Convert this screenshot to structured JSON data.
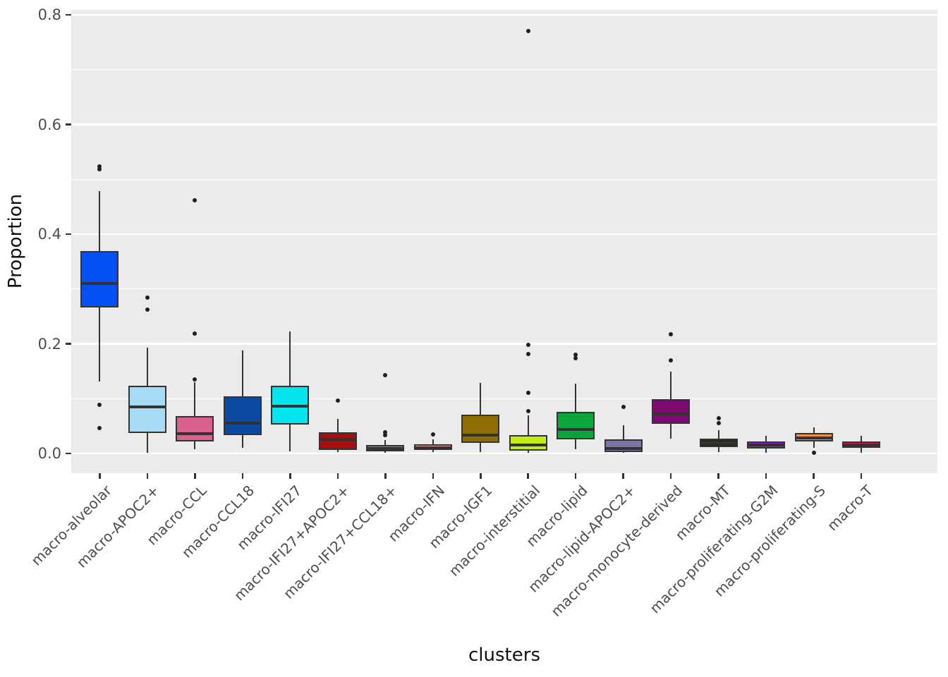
{
  "figure": {
    "panel_bg": "#EBEBEB",
    "grid_color": "#FFFFFF",
    "box_edge_color": "#333333",
    "outlier_color": "#1F1F1F",
    "tick_color": "#333333",
    "tick_label_color": "#4D4D4D",
    "axis_title_color": "#111111"
  },
  "chart_data": {
    "type": "boxplot",
    "title": "",
    "xlabel": "clusters",
    "ylabel": "Proportion",
    "ylim": [
      -0.036,
      0.809
    ],
    "yticks": [
      0.0,
      0.2,
      0.4,
      0.6,
      0.8
    ],
    "ytick_labels": [
      "0.0",
      "0.2",
      "0.4",
      "0.6",
      "0.8"
    ],
    "yminor": [
      0.1,
      0.3,
      0.5,
      0.7
    ],
    "grid": true,
    "legend": "none",
    "categories": [
      "macro-alveolar",
      "macro-APOC2+",
      "macro-CCL",
      "macro-CCL18",
      "macro-IFI27",
      "macro-IFI27+APOC2+",
      "macro-IFI27+CCL18+",
      "macro-IFN",
      "macro-IGF1",
      "macro-interstitial",
      "macro-lipid",
      "macro-lipid-APOC2+",
      "macro-monocyte-derived",
      "macro-MT",
      "macro-proliferating-G2M",
      "macro-proliferating-S",
      "macro-T"
    ],
    "boxes": [
      {
        "label": "macro-alveolar",
        "color": "#0451F5",
        "whisker_low": 0.131,
        "q1": 0.266,
        "median": 0.31,
        "q3": 0.369,
        "whisker_high": 0.478,
        "outliers": [
          0.524,
          0.518,
          0.089,
          0.046
        ]
      },
      {
        "label": "macro-APOC2+",
        "color": "#A6DCF5",
        "whisker_low": 0.001,
        "q1": 0.037,
        "median": 0.085,
        "q3": 0.124,
        "whisker_high": 0.193,
        "outliers": [
          0.284,
          0.262
        ]
      },
      {
        "label": "macro-CCL",
        "color": "#D9618E",
        "whisker_low": 0.008,
        "q1": 0.022,
        "median": 0.036,
        "q3": 0.068,
        "whisker_high": 0.13,
        "outliers": [
          0.462,
          0.219,
          0.135
        ]
      },
      {
        "label": "macro-CCL18",
        "color": "#0C4AA2",
        "whisker_low": 0.01,
        "q1": 0.034,
        "median": 0.055,
        "q3": 0.104,
        "whisker_high": 0.188,
        "outliers": []
      },
      {
        "label": "macro-IFI27",
        "color": "#00E5EE",
        "whisker_low": 0.004,
        "q1": 0.053,
        "median": 0.086,
        "q3": 0.124,
        "whisker_high": 0.222,
        "outliers": []
      },
      {
        "label": "macro-IFI27+APOC2+",
        "color": "#A80D10",
        "whisker_low": 0.002,
        "q1": 0.006,
        "median": 0.026,
        "q3": 0.039,
        "whisker_high": 0.063,
        "outliers": [
          0.097
        ]
      },
      {
        "label": "macro-IFI27+CCL18+",
        "color": "#8A8C64",
        "whisker_low": 0.001,
        "q1": 0.004,
        "median": 0.009,
        "q3": 0.015,
        "whisker_high": 0.024,
        "outliers": [
          0.143,
          0.039,
          0.034
        ]
      },
      {
        "label": "macro-IFN",
        "color": "#F8B19B",
        "whisker_low": 0.002,
        "q1": 0.006,
        "median": 0.01,
        "q3": 0.017,
        "whisker_high": 0.026,
        "outliers": [
          0.035
        ]
      },
      {
        "label": "macro-IGF1",
        "color": "#8E6D03",
        "whisker_low": 0.003,
        "q1": 0.019,
        "median": 0.033,
        "q3": 0.071,
        "whisker_high": 0.129,
        "outliers": []
      },
      {
        "label": "macro-interstitial",
        "color": "#C3EE12",
        "whisker_low": 0.001,
        "q1": 0.005,
        "median": 0.016,
        "q3": 0.033,
        "whisker_high": 0.069,
        "outliers": [
          0.77,
          0.198,
          0.181,
          0.11,
          0.077
        ]
      },
      {
        "label": "macro-lipid",
        "color": "#0AA63C",
        "whisker_low": 0.008,
        "q1": 0.026,
        "median": 0.044,
        "q3": 0.076,
        "whisker_high": 0.127,
        "outliers": [
          0.18,
          0.174
        ]
      },
      {
        "label": "macro-lipid-APOC2+",
        "color": "#7B74A6",
        "whisker_low": 0.001,
        "q1": 0.003,
        "median": 0.009,
        "q3": 0.026,
        "whisker_high": 0.051,
        "outliers": [
          0.085
        ]
      },
      {
        "label": "macro-monocyte-derived",
        "color": "#7D0B70",
        "whisker_low": 0.027,
        "q1": 0.054,
        "median": 0.072,
        "q3": 0.099,
        "whisker_high": 0.149,
        "outliers": [
          0.217,
          0.17
        ]
      },
      {
        "label": "macro-MT",
        "color": "#2E2A12",
        "whisker_low": 0.002,
        "q1": 0.012,
        "median": 0.019,
        "q3": 0.027,
        "whisker_high": 0.042,
        "outliers": [
          0.064,
          0.055
        ]
      },
      {
        "label": "macro-proliferating-G2M",
        "color": "#9A1FD8",
        "whisker_low": 0.001,
        "q1": 0.009,
        "median": 0.015,
        "q3": 0.022,
        "whisker_high": 0.032,
        "outliers": []
      },
      {
        "label": "macro-proliferating-S",
        "color": "#F28E41",
        "whisker_low": 0.01,
        "q1": 0.022,
        "median": 0.028,
        "q3": 0.037,
        "whisker_high": 0.048,
        "outliers": [
          0.001
        ]
      },
      {
        "label": "macro-T",
        "color": "#EA1760",
        "whisker_low": 0.001,
        "q1": 0.01,
        "median": 0.016,
        "q3": 0.022,
        "whisker_high": 0.032,
        "outliers": []
      }
    ]
  }
}
